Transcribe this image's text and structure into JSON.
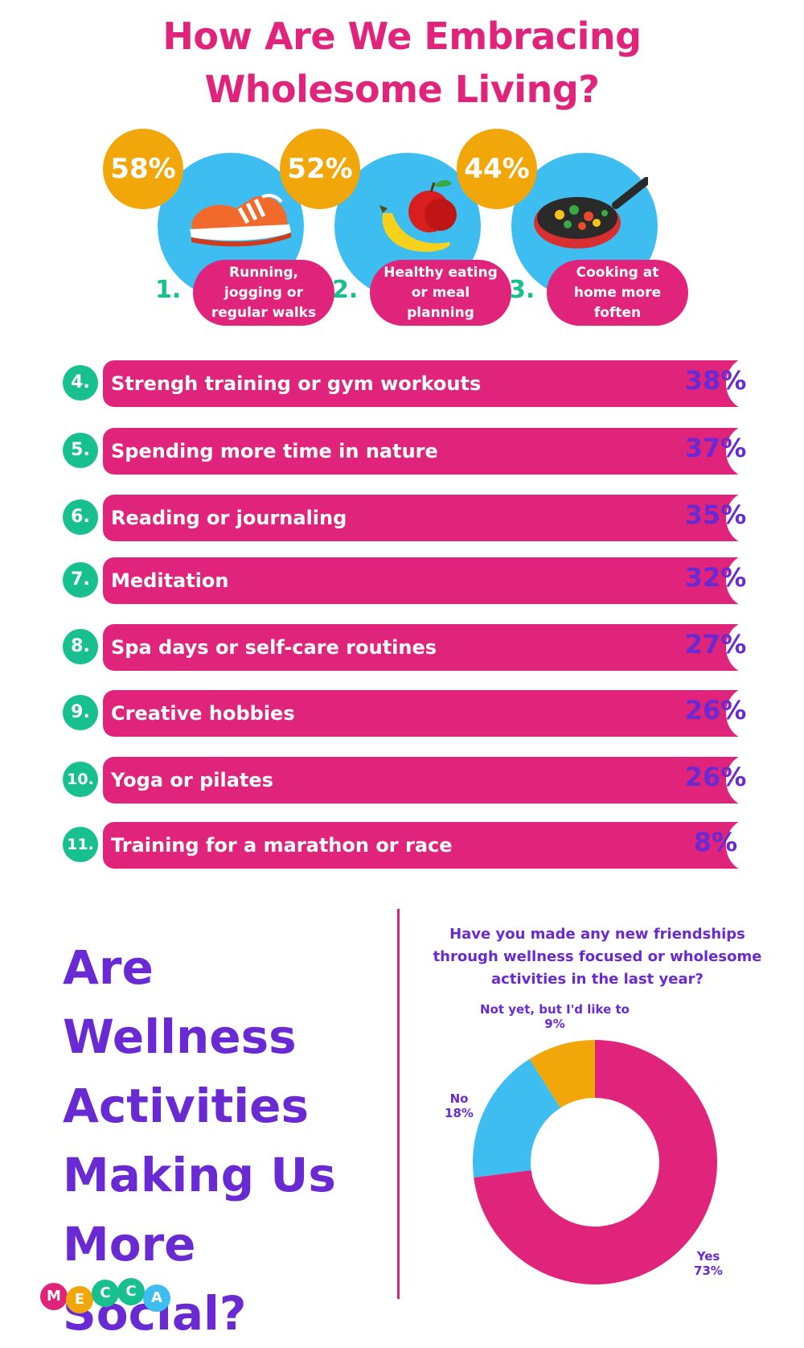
{
  "title_line1": "How Are We Embracing",
  "title_line2": "Wholesome Living?",
  "colors": {
    "pink": "#e0247c",
    "purple": "#6a2ad3",
    "green": "#18c08f",
    "orange": "#f1a60a",
    "blue": "#3dbdf0"
  },
  "top_activities": [
    {
      "rank": "1.",
      "percent": "58%",
      "label": "Running, jogging or regular walks",
      "icon": "running-shoe-icon"
    },
    {
      "rank": "2.",
      "percent": "52%",
      "label": "Healthy eating or meal planning",
      "icon": "fruit-icon"
    },
    {
      "rank": "3.",
      "percent": "44%",
      "label": "Cooking at home more foften",
      "icon": "frying-pan-icon"
    }
  ],
  "activities": [
    {
      "rank": "4.",
      "label": "Strengh training or gym workouts",
      "value": "38%"
    },
    {
      "rank": "5.",
      "label": "Spending more time in nature",
      "value": "37%"
    },
    {
      "rank": "6.",
      "label": "Reading or journaling",
      "value": "35%"
    },
    {
      "rank": "7.",
      "label": "Meditation",
      "value": "32%"
    },
    {
      "rank": "8.",
      "label": "Spa days or self-care routines",
      "value": "27%"
    },
    {
      "rank": "9.",
      "label": "Creative hobbies",
      "value": "26%"
    },
    {
      "rank": "10.",
      "label": "Yoga or pilates",
      "value": "26%"
    },
    {
      "rank": "11.",
      "label": "Training for a marathon or race",
      "value": "8%"
    }
  ],
  "section_title_lines": [
    "Are Wellness",
    "Activities",
    "Making Us",
    "More Social?"
  ],
  "question": "Have you made any new friendships through wellness focused or wholesome activities in the last year?",
  "chart_data": [
    {
      "type": "bar",
      "categories": [
        "Running, jogging or regular walks",
        "Healthy eating or meal planning",
        "Cooking at home more foften",
        "Strengh training or gym workouts",
        "Spending more time in nature",
        "Reading or journaling",
        "Meditation",
        "Spa days or self-care routines",
        "Creative hobbies",
        "Yoga or pilates",
        "Training for a marathon or race"
      ],
      "values": [
        58,
        52,
        44,
        38,
        37,
        35,
        32,
        27,
        26,
        26,
        8
      ],
      "title": "How Are We Embracing Wholesome Living?",
      "unit": "%"
    },
    {
      "type": "pie",
      "donut": true,
      "title": "Have you made any new friendships through wellness focused or wholesome activities in the last year?",
      "slices": [
        {
          "label": "Yes",
          "value": 73,
          "display": "73%",
          "color": "#e0247c"
        },
        {
          "label": "No",
          "value": 18,
          "display": "18%",
          "color": "#3dbdf0"
        },
        {
          "label": "Not yet, but I'd like to",
          "value": 9,
          "display": "9%",
          "color": "#f1a60a"
        }
      ]
    }
  ],
  "logo_letters": [
    "M",
    "E",
    "C",
    "C",
    "A"
  ]
}
